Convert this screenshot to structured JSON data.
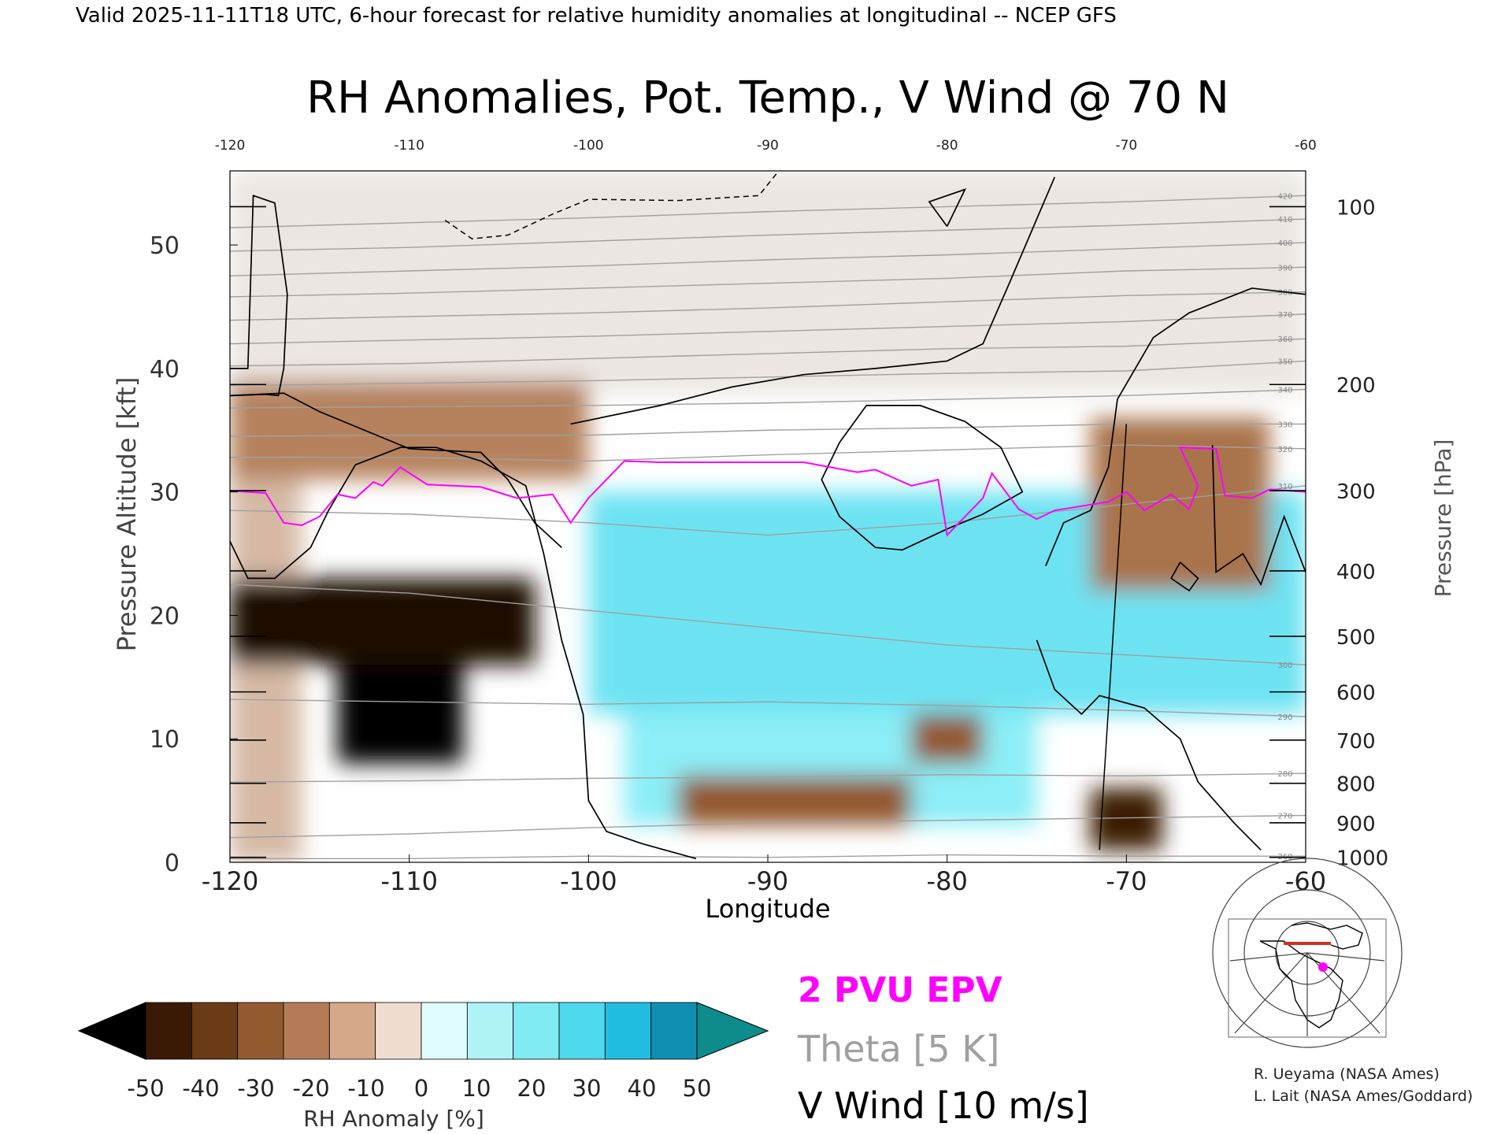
{
  "header": {
    "valid_line": "Valid 2025-11-11T18 UTC, 6-hour forecast for relative humidity anomalies at longitudinal -- NCEP GFS"
  },
  "chart_data": {
    "type": "heatmap",
    "title": "RH Anomalies, Pot. Temp., V Wind @ 70 N",
    "xlabel": "Longitude",
    "ylabel_left": "Pressure Altitude [kft]",
    "ylabel_right": "Pressure [hPa]",
    "xlim": [
      -120,
      -60
    ],
    "ylim": [
      0,
      56
    ],
    "x_ticks": [
      "-120",
      "-110",
      "-100",
      "-90",
      "-80",
      "-70",
      "-60"
    ],
    "y_ticks_left": [
      "0",
      "10",
      "20",
      "30",
      "40",
      "50"
    ],
    "y_ticks_left_values": [
      0,
      10,
      20,
      30,
      40,
      50
    ],
    "y_ticks_right": [
      {
        "label": "100",
        "kft": 53.1
      },
      {
        "label": "200",
        "kft": 38.7
      },
      {
        "label": "300",
        "kft": 30.1
      },
      {
        "label": "400",
        "kft": 23.6
      },
      {
        "label": "500",
        "kft": 18.3
      },
      {
        "label": "600",
        "kft": 13.8
      },
      {
        "label": "700",
        "kft": 9.9
      },
      {
        "label": "800",
        "kft": 6.4
      },
      {
        "label": "900",
        "kft": 3.2
      },
      {
        "label": "1000",
        "kft": 0.4
      }
    ],
    "theta_labels": [
      "420",
      "410",
      "400",
      "390",
      "380",
      "370",
      "360",
      "350",
      "340",
      "330",
      "320",
      "310",
      "300",
      "290",
      "280",
      "270",
      "260"
    ],
    "rh_regions": [
      {
        "x": [
          -120,
          -116
        ],
        "y": [
          0,
          56
        ],
        "rh": -5
      },
      {
        "x": [
          -120,
          -60
        ],
        "y": [
          38,
          56
        ],
        "rh": 0
      },
      {
        "x": [
          -120,
          -100
        ],
        "y": [
          31,
          39
        ],
        "rh": -12
      },
      {
        "x": [
          -100,
          -60
        ],
        "y": [
          12,
          30
        ],
        "rh": 25
      },
      {
        "x": [
          -98,
          -75
        ],
        "y": [
          3,
          12
        ],
        "rh": 20
      },
      {
        "x": [
          -114,
          -107
        ],
        "y": [
          8,
          18
        ],
        "rh": -50
      },
      {
        "x": [
          -120,
          -103
        ],
        "y": [
          16,
          23
        ],
        "rh": -45
      },
      {
        "x": [
          -95,
          -82
        ],
        "y": [
          3,
          7
        ],
        "rh": -20
      },
      {
        "x": [
          -72,
          -68
        ],
        "y": [
          1,
          6
        ],
        "rh": -40
      },
      {
        "x": [
          -72,
          -62
        ],
        "y": [
          22,
          36
        ],
        "rh": -15
      },
      {
        "x": [
          -82,
          -78
        ],
        "y": [
          8,
          12
        ],
        "rh": -20
      }
    ],
    "theta_contours": [
      {
        "label": "260",
        "y": [
          0.3,
          0.3,
          0.5,
          0.4,
          0.6,
          0.5,
          0.5
        ]
      },
      {
        "label": "270",
        "y": [
          2.0,
          2.3,
          2.8,
          3.2,
          3.4,
          3.6,
          3.8
        ]
      },
      {
        "label": "280",
        "y": [
          6.5,
          6.6,
          6.8,
          6.9,
          7.1,
          7.0,
          7.2
        ]
      },
      {
        "label": "290",
        "y": [
          13.2,
          13.0,
          12.8,
          13.0,
          12.7,
          12.3,
          11.8
        ]
      },
      {
        "label": "300",
        "y": [
          22.5,
          21.8,
          20.4,
          19.0,
          17.6,
          16.8,
          16.0
        ]
      },
      {
        "label": "310",
        "y": [
          28.5,
          28.2,
          27.5,
          26.5,
          27.5,
          29.0,
          30.5
        ]
      },
      {
        "label": "320",
        "y": [
          32.8,
          32.8,
          32.5,
          33.0,
          33.4,
          33.8,
          33.5
        ]
      },
      {
        "label": "330",
        "y": [
          34.5,
          34.6,
          34.6,
          35.0,
          35.2,
          35.5,
          35.5
        ]
      },
      {
        "label": "340",
        "y": [
          36.8,
          36.9,
          37.0,
          37.2,
          37.5,
          37.8,
          38.3
        ]
      },
      {
        "label": "350",
        "y": [
          38.6,
          38.8,
          39.0,
          39.3,
          39.6,
          39.8,
          40.6
        ]
      },
      {
        "label": "360",
        "y": [
          40.2,
          40.4,
          40.8,
          41.2,
          41.6,
          41.8,
          42.4
        ]
      },
      {
        "label": "370",
        "y": [
          42.0,
          42.3,
          42.6,
          43.0,
          43.4,
          43.8,
          44.4
        ]
      },
      {
        "label": "380",
        "y": [
          43.9,
          44.2,
          44.5,
          44.9,
          45.4,
          45.9,
          46.2
        ]
      },
      {
        "label": "390",
        "y": [
          45.8,
          46.1,
          46.5,
          46.9,
          47.3,
          47.9,
          48.2
        ]
      },
      {
        "label": "400",
        "y": [
          47.5,
          47.9,
          48.3,
          48.8,
          49.2,
          49.7,
          50.2
        ]
      },
      {
        "label": "410",
        "y": [
          49.5,
          49.8,
          50.3,
          50.8,
          51.2,
          51.6,
          52.1
        ]
      },
      {
        "label": "420",
        "y": [
          51.4,
          51.8,
          52.2,
          52.7,
          53.1,
          53.5,
          54.0
        ]
      }
    ],
    "theta_x": [
      -120,
      -110,
      -100,
      -90,
      -80,
      -70,
      -60
    ],
    "epv_2pvu": [
      {
        "x": -120,
        "y": 30.1
      },
      {
        "x": -118,
        "y": 29.9
      },
      {
        "x": -117,
        "y": 27.5
      },
      {
        "x": -116,
        "y": 27.3
      },
      {
        "x": -115,
        "y": 28.0
      },
      {
        "x": -114,
        "y": 29.8
      },
      {
        "x": -113,
        "y": 29.5
      },
      {
        "x": -112,
        "y": 30.8
      },
      {
        "x": -111.5,
        "y": 30.5
      },
      {
        "x": -110.5,
        "y": 32.0
      },
      {
        "x": -109,
        "y": 30.6
      },
      {
        "x": -106,
        "y": 30.4
      },
      {
        "x": -104,
        "y": 29.5
      },
      {
        "x": -102,
        "y": 29.8
      },
      {
        "x": -101,
        "y": 27.5
      },
      {
        "x": -100,
        "y": 29.5
      },
      {
        "x": -98,
        "y": 32.5
      },
      {
        "x": -96,
        "y": 32.4
      },
      {
        "x": -88,
        "y": 32.4
      },
      {
        "x": -85,
        "y": 31.6
      },
      {
        "x": -84,
        "y": 31.8
      },
      {
        "x": -82,
        "y": 30.5
      },
      {
        "x": -80.5,
        "y": 31.0
      },
      {
        "x": -80,
        "y": 26.5
      },
      {
        "x": -78,
        "y": 29.5
      },
      {
        "x": -77.5,
        "y": 31.5
      },
      {
        "x": -76,
        "y": 28.6
      },
      {
        "x": -75,
        "y": 27.8
      },
      {
        "x": -74,
        "y": 28.5
      },
      {
        "x": -71,
        "y": 29.2
      },
      {
        "x": -70,
        "y": 30.0
      },
      {
        "x": -69,
        "y": 28.5
      },
      {
        "x": -67.5,
        "y": 29.8
      },
      {
        "x": -66.5,
        "y": 28.6
      },
      {
        "x": -66,
        "y": 30.5
      },
      {
        "x": -67,
        "y": 33.6
      },
      {
        "x": -65,
        "y": 33.5
      },
      {
        "x": -64.5,
        "y": 29.7
      },
      {
        "x": -63,
        "y": 29.5
      },
      {
        "x": -62,
        "y": 30.2
      },
      {
        "x": -60,
        "y": 30.0
      }
    ],
    "vwind_zero": [
      [
        {
          "x": -120,
          "y": 40.0
        },
        {
          "x": -119,
          "y": 40.0
        },
        {
          "x": -118.7,
          "y": 54.0
        },
        {
          "x": -117.5,
          "y": 53.4
        },
        {
          "x": -116.8,
          "y": 46.0
        },
        {
          "x": -117.0,
          "y": 40.0
        },
        {
          "x": -117.3,
          "y": 37.8
        },
        {
          "x": -118.0,
          "y": 37.9
        },
        {
          "x": -120,
          "y": 37.8
        }
      ],
      [
        {
          "x": -120,
          "y": 26.0
        },
        {
          "x": -119.0,
          "y": 23.0
        },
        {
          "x": -117.5,
          "y": 23.0
        },
        {
          "x": -115.5,
          "y": 25.5
        },
        {
          "x": -114.5,
          "y": 28.5
        },
        {
          "x": -113.0,
          "y": 32.2
        },
        {
          "x": -110.5,
          "y": 33.6
        },
        {
          "x": -108.5,
          "y": 33.6
        },
        {
          "x": -106.0,
          "y": 32.5
        },
        {
          "x": -103.5,
          "y": 30.5
        },
        {
          "x": -102.5,
          "y": 25.0
        },
        {
          "x": -101.5,
          "y": 18.0
        },
        {
          "x": -100.3,
          "y": 12.0
        },
        {
          "x": -100.0,
          "y": 5.0
        },
        {
          "x": -99.0,
          "y": 2.5
        },
        {
          "x": -97.0,
          "y": 1.5
        },
        {
          "x": -94.0,
          "y": 0.3
        }
      ],
      [
        {
          "x": -120,
          "y": 37.8
        },
        {
          "x": -117.0,
          "y": 38.0
        },
        {
          "x": -115.0,
          "y": 36.5
        },
        {
          "x": -112.5,
          "y": 35.0
        },
        {
          "x": -110.0,
          "y": 33.5
        },
        {
          "x": -106.0,
          "y": 33.2
        },
        {
          "x": -104.5,
          "y": 31.0
        },
        {
          "x": -103.0,
          "y": 27.5
        },
        {
          "x": -101.5,
          "y": 25.5
        }
      ],
      [
        {
          "x": -101.0,
          "y": 35.5
        },
        {
          "x": -96.0,
          "y": 37.0
        },
        {
          "x": -92.0,
          "y": 38.5
        },
        {
          "x": -88.0,
          "y": 39.5
        },
        {
          "x": -84.0,
          "y": 40.0
        },
        {
          "x": -80.0,
          "y": 40.6
        },
        {
          "x": -78.0,
          "y": 42.0
        },
        {
          "x": -76.5,
          "y": 47.0
        },
        {
          "x": -74.0,
          "y": 55.5
        }
      ],
      [
        {
          "x": -86.0,
          "y": 34.0
        },
        {
          "x": -84.5,
          "y": 37.0
        },
        {
          "x": -81.5,
          "y": 37.0
        },
        {
          "x": -79.0,
          "y": 35.7
        },
        {
          "x": -77.0,
          "y": 33.6
        },
        {
          "x": -75.8,
          "y": 30.0
        },
        {
          "x": -78.0,
          "y": 28.2
        },
        {
          "x": -80.0,
          "y": 27.0
        },
        {
          "x": -82.5,
          "y": 25.3
        },
        {
          "x": -84.0,
          "y": 25.5
        },
        {
          "x": -86.0,
          "y": 28.0
        },
        {
          "x": -87.0,
          "y": 31.0
        },
        {
          "x": -86.0,
          "y": 34.0
        }
      ],
      [
        {
          "x": -74.5,
          "y": 24.0
        },
        {
          "x": -73.5,
          "y": 27.5
        },
        {
          "x": -72.0,
          "y": 28.5
        },
        {
          "x": -71.0,
          "y": 32.0
        },
        {
          "x": -70.5,
          "y": 37.5
        },
        {
          "x": -68.5,
          "y": 42.5
        },
        {
          "x": -66.5,
          "y": 44.5
        },
        {
          "x": -63.0,
          "y": 46.5
        },
        {
          "x": -60.0,
          "y": 46.0
        }
      ],
      [
        {
          "x": -75.0,
          "y": 18.0
        },
        {
          "x": -74.0,
          "y": 14.0
        },
        {
          "x": -72.5,
          "y": 12.0
        },
        {
          "x": -71.5,
          "y": 13.5
        },
        {
          "x": -69.0,
          "y": 12.5
        },
        {
          "x": -67.0,
          "y": 10.0
        },
        {
          "x": -66.0,
          "y": 6.5
        },
        {
          "x": -64.0,
          "y": 3.2
        },
        {
          "x": -62.5,
          "y": 1.0
        }
      ],
      [
        {
          "x": -60.0,
          "y": 23.5
        },
        {
          "x": -61.2,
          "y": 28.0
        },
        {
          "x": -62.5,
          "y": 22.5
        },
        {
          "x": -63.5,
          "y": 25.0
        },
        {
          "x": -65.0,
          "y": 23.5
        },
        {
          "x": -65.2,
          "y": 33.8
        }
      ],
      [
        {
          "x": -80.0,
          "y": 51.5
        },
        {
          "x": -81.0,
          "y": 53.5
        },
        {
          "x": -79.0,
          "y": 54.5
        },
        {
          "x": -80.0,
          "y": 51.5
        }
      ],
      [
        {
          "x": -67.0,
          "y": 24.3
        },
        {
          "x": -66.0,
          "y": 23.0
        },
        {
          "x": -66.5,
          "y": 22.0
        },
        {
          "x": -67.5,
          "y": 23.0
        },
        {
          "x": -67.0,
          "y": 24.3
        }
      ]
    ],
    "vwind_ten": [
      [
        {
          "x": -108.0,
          "y": 52.0
        },
        {
          "x": -106.5,
          "y": 50.5
        },
        {
          "x": -104.5,
          "y": 50.8
        },
        {
          "x": -102.0,
          "y": 52.5
        },
        {
          "x": -100.0,
          "y": 53.7
        },
        {
          "x": -95.0,
          "y": 53.6
        },
        {
          "x": -90.5,
          "y": 54.0
        },
        {
          "x": -89.5,
          "y": 55.8
        }
      ],
      [
        {
          "x": -71.5,
          "y": 1.0
        },
        {
          "x": -70.0,
          "y": 35.5
        }
      ]
    ],
    "legend": {
      "colorbar_ticks": [
        "-50",
        "-40",
        "-30",
        "-20",
        "-10",
        "0",
        "10",
        "20",
        "30",
        "40",
        "50"
      ],
      "colorbar_label": "RH Anomaly [%]",
      "colors": [
        "#000000",
        "#3b1a05",
        "#6b3a16",
        "#93592f",
        "#b47c56",
        "#d5a88a",
        "#f0dcd0",
        "#e0fbfb",
        "#b0f3f7",
        "#80ebf3",
        "#4ed8ee",
        "#21bde0",
        "#108fb3",
        "#0b7a8a"
      ],
      "epv_label": "2 PVU EPV",
      "theta_label": "Theta [5 K]",
      "vwind_label": "V Wind [10 m/s]",
      "epv_color": "#ff00ff",
      "theta_color": "#a0a0a0"
    },
    "credits": [
      "R. Ueyama (NASA Ames)",
      "L. Lait (NASA Ames/Goddard)"
    ]
  }
}
